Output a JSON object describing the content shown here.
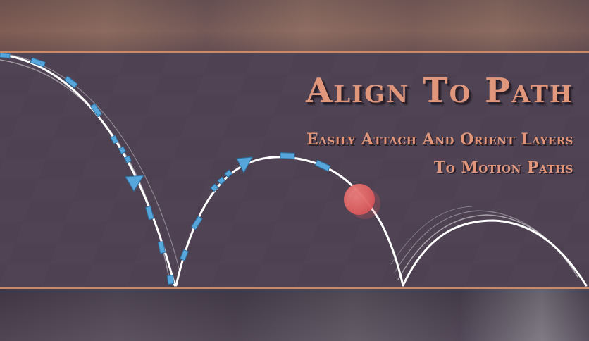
{
  "banner": {
    "title": "Align To Path",
    "subtitle_line1": "Easily Attach And Orient Layers",
    "subtitle_line2": "To Motion Paths"
  },
  "colors": {
    "background": "#4d4052",
    "accent": "#e0967a",
    "path_marker": "#56a6dc",
    "ball": "#e06a6a",
    "path_line": "#ffffff"
  }
}
